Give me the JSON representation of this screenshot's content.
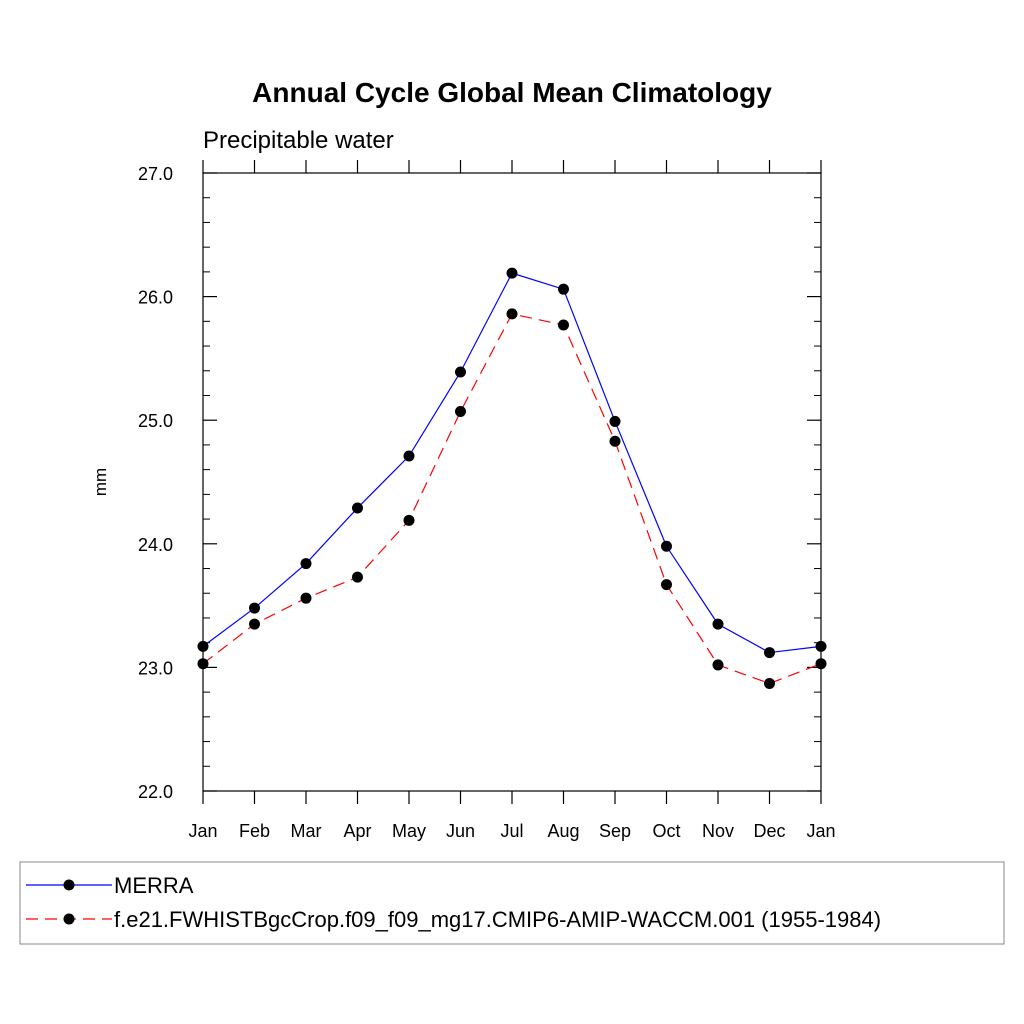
{
  "chart_data": {
    "type": "line",
    "title": "Annual Cycle Global Mean Climatology",
    "subtitle": "Precipitable water",
    "xlabel": "",
    "ylabel": "mm",
    "categories": [
      "Jan",
      "Feb",
      "Mar",
      "Apr",
      "May",
      "Jun",
      "Jul",
      "Aug",
      "Sep",
      "Oct",
      "Nov",
      "Dec",
      "Jan"
    ],
    "ylim": [
      22.0,
      27.0
    ],
    "yticks": [
      "22.0",
      "23.0",
      "24.0",
      "25.0",
      "26.0",
      "27.0"
    ],
    "grid": false,
    "legend_position": "bottom",
    "series": [
      {
        "name": "MERRA",
        "color": "#0000ff",
        "style": "solid",
        "marker": "circle",
        "values": [
          23.17,
          23.48,
          23.84,
          24.29,
          24.71,
          25.39,
          26.19,
          26.06,
          24.99,
          23.98,
          23.35,
          23.12,
          23.17
        ]
      },
      {
        "name": "f.e21.FWHISTBgcCrop.f09_f09_mg17.CMIP6-AMIP-WACCM.001 (1955-1984)",
        "color": "#ff0000",
        "style": "dashed",
        "marker": "circle",
        "values": [
          23.03,
          23.35,
          23.56,
          23.73,
          24.19,
          25.07,
          25.86,
          25.77,
          24.83,
          23.67,
          23.02,
          22.87,
          23.03
        ]
      }
    ]
  }
}
